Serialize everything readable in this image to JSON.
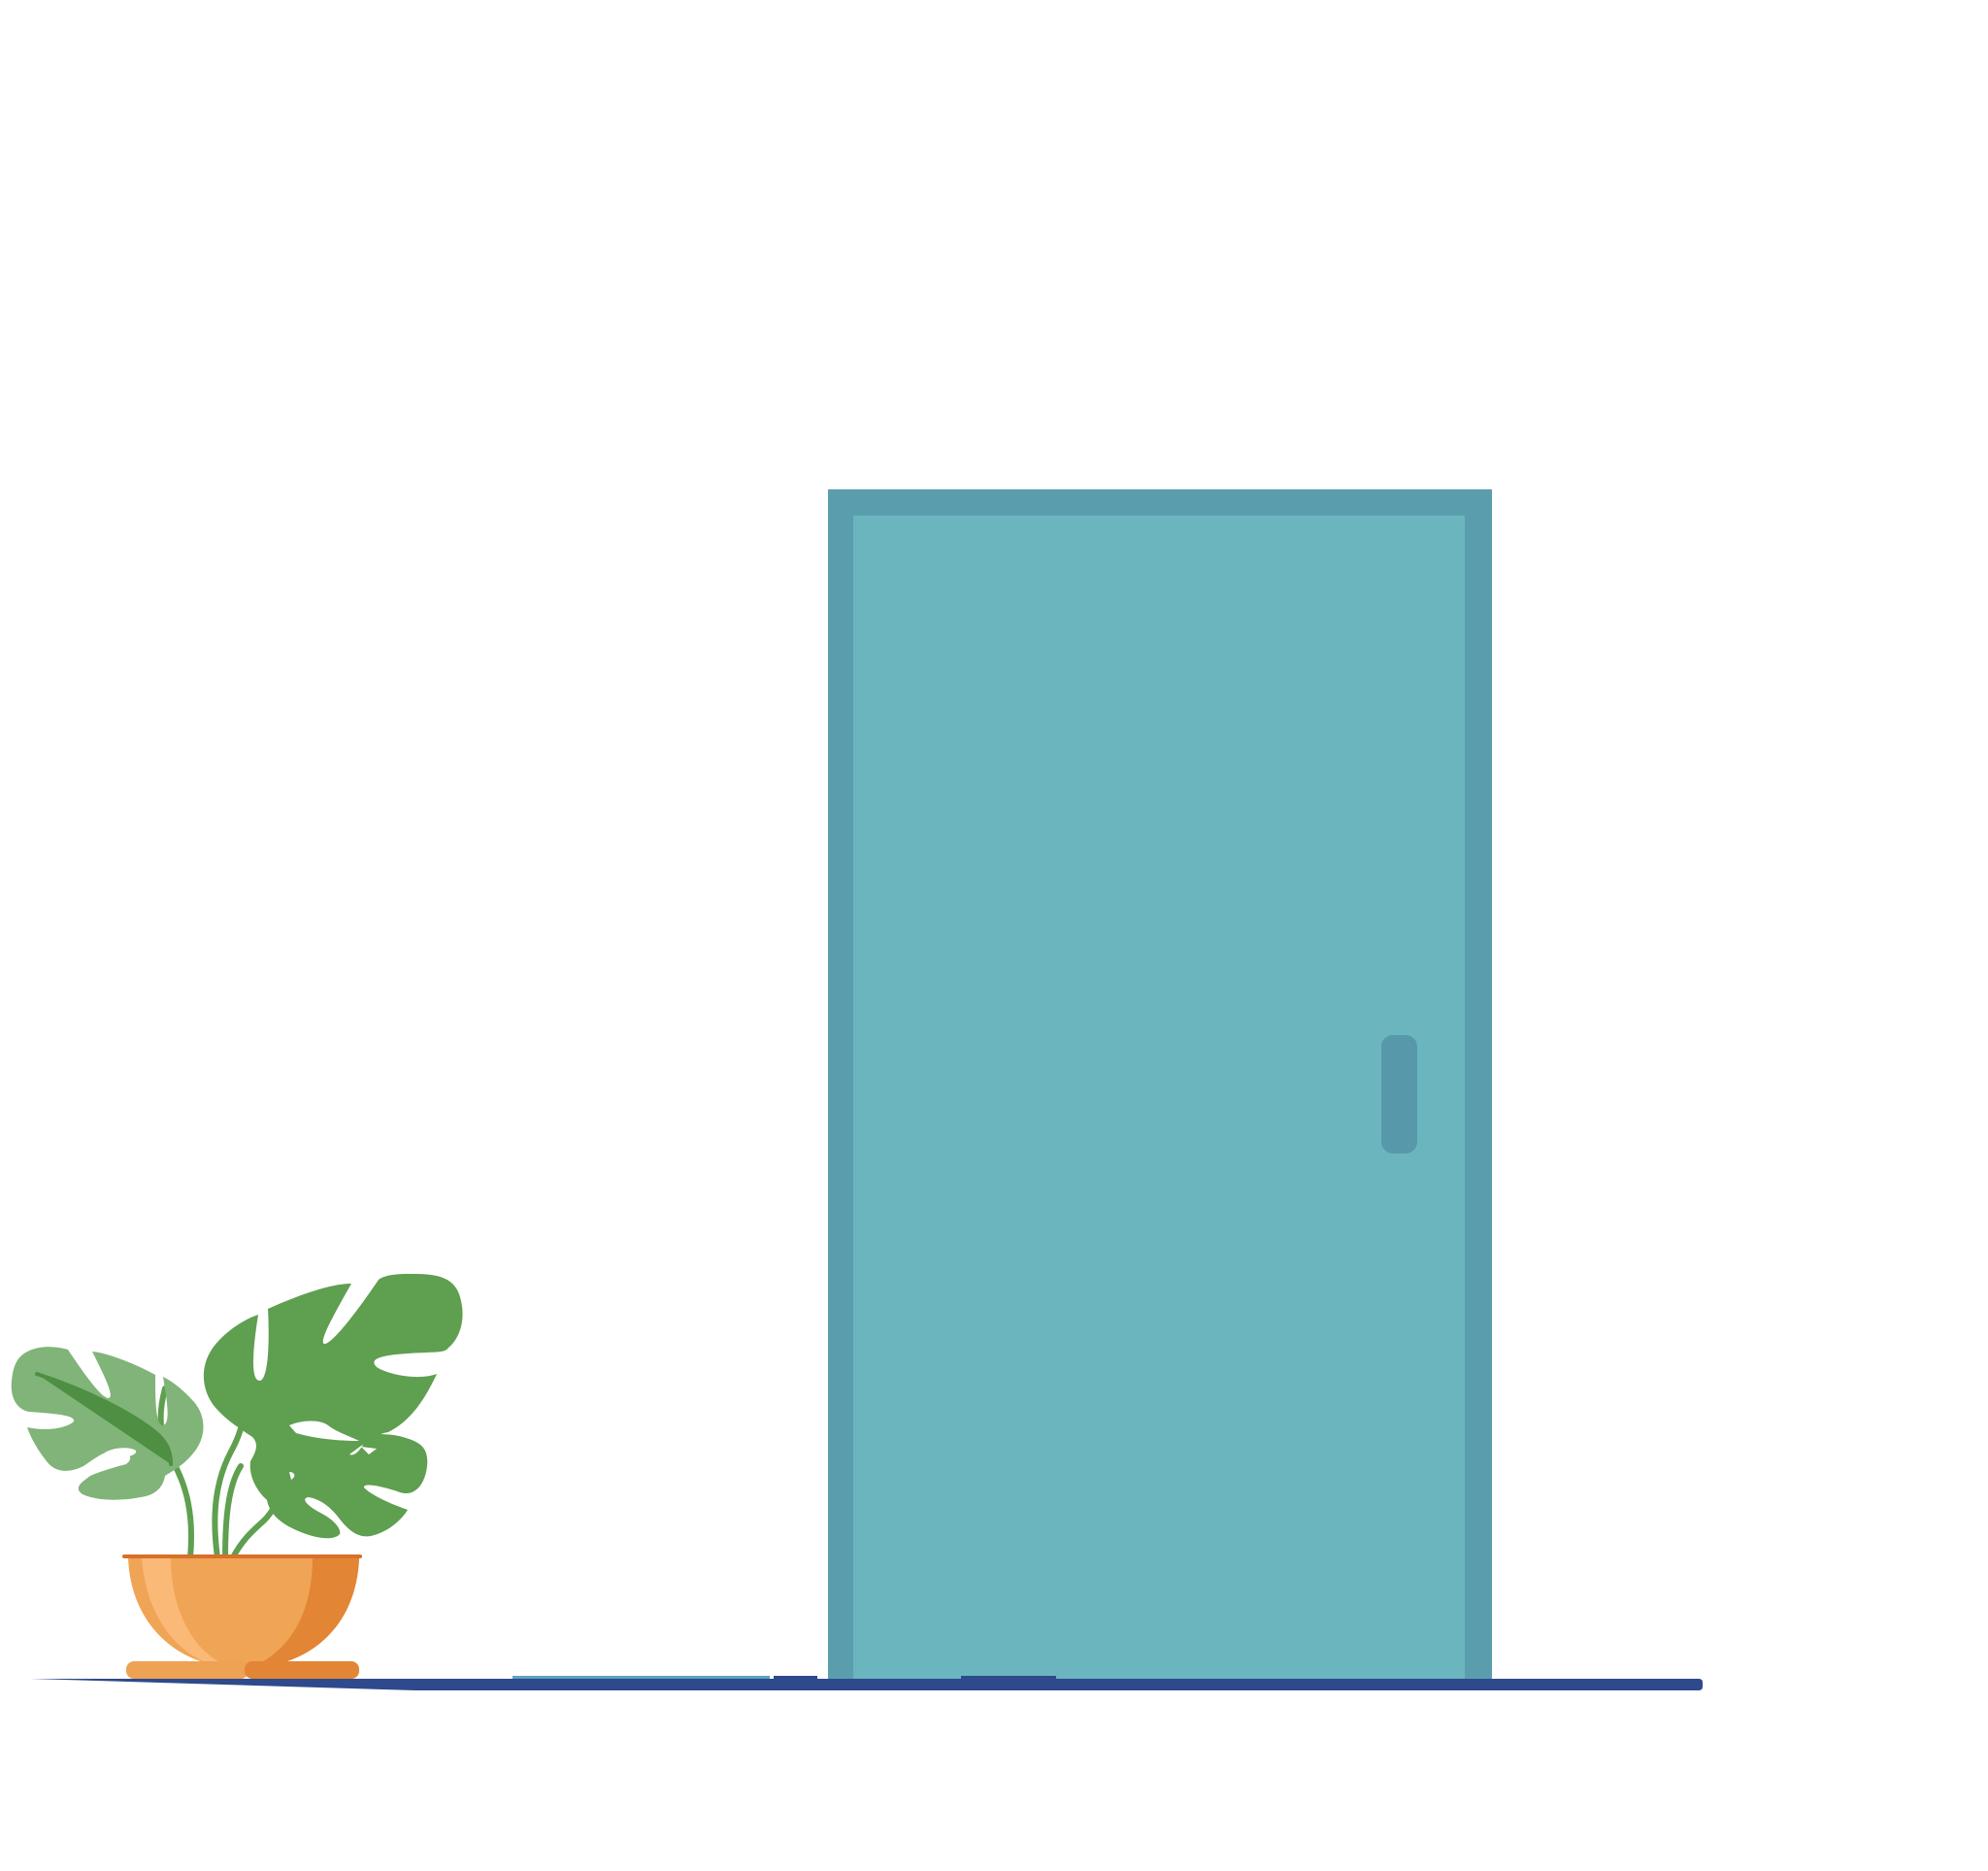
{
  "scene": {
    "background_color": "#ffffff",
    "objects": [
      {
        "name": "door",
        "type": "closed-door"
      },
      {
        "name": "door-handle",
        "type": "vertical-pull-handle"
      },
      {
        "name": "floor-line",
        "type": "floor"
      },
      {
        "name": "potted-plant",
        "type": "monstera-in-bowl-pot"
      }
    ]
  },
  "colors": {
    "door_panel": "#6bb5bf",
    "door_frame": "#5a9eae",
    "door_handle": "#5898ab",
    "floor": "#2e4a8c",
    "floor_highlight": "#5ba3c2",
    "leaf_dark": "#5f9f50",
    "leaf_light": "#80b478",
    "leaf_vein": "#4e8f43",
    "stem": "#5f9f50",
    "pot_main": "#f0a455",
    "pot_light": "#fbb977",
    "pot_shadow": "#e28535",
    "pot_rim": "#d8702a",
    "pot_base": "#eea254"
  }
}
